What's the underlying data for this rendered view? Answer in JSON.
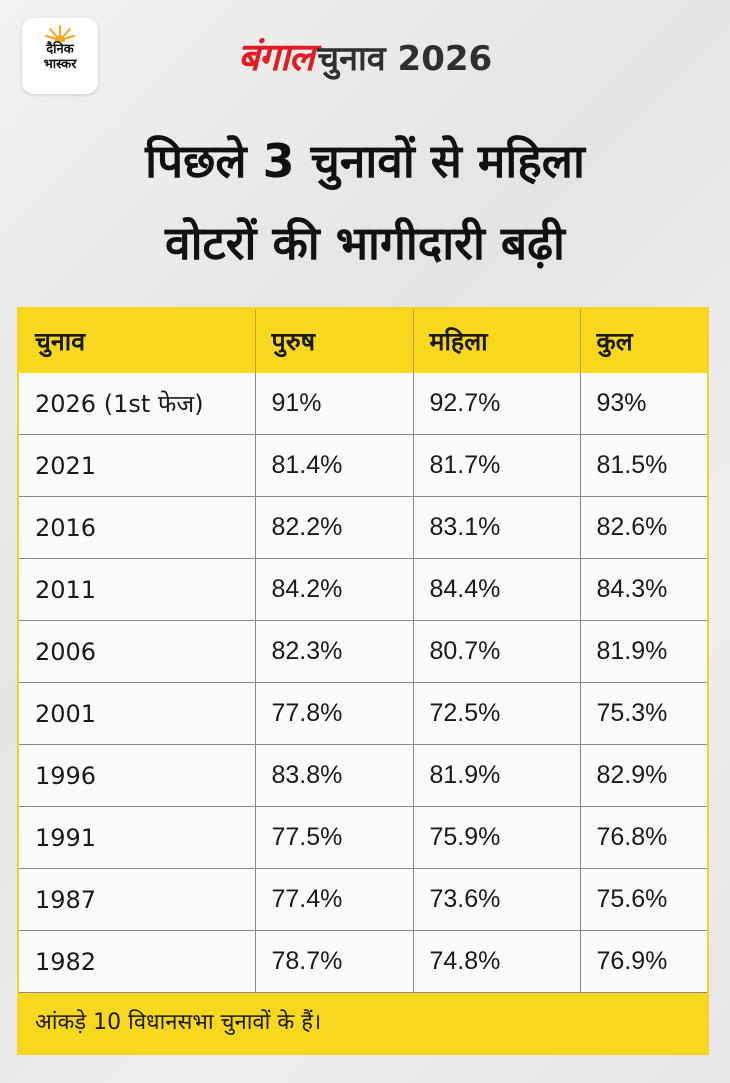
{
  "brand": {
    "logo_line1": "दैनिक",
    "logo_line2": "भास्कर",
    "logo_icon": "sun-icon",
    "title_highlight": "बंगाल",
    "title_rest": "चुनाव 2026"
  },
  "headline": {
    "line1": "पिछले 3 चुनावों से महिला",
    "line2": "वोटरों की भागीदारी बढ़ी"
  },
  "footer_note": "आंकड़े 10 विधानसभा चुनावों के हैं।",
  "colors": {
    "accent_yellow": "#f7d81e",
    "brand_red": "#e21b23",
    "text_dark": "#1a1a1a"
  },
  "chart_data": {
    "type": "table",
    "title": "पिछले 3 चुनावों से महिला वोटरों की भागीदारी बढ़ी",
    "columns": [
      "चुनाव",
      "पुरुष",
      "महिला",
      "कुल"
    ],
    "rows": [
      [
        "2026 (1st फेज)",
        "91%",
        "92.7%",
        "93%"
      ],
      [
        "2021",
        "81.4%",
        "81.7%",
        "81.5%"
      ],
      [
        "2016",
        "82.2%",
        "83.1%",
        "82.6%"
      ],
      [
        "2011",
        "84.2%",
        "84.4%",
        "84.3%"
      ],
      [
        "2006",
        "82.3%",
        "80.7%",
        "81.9%"
      ],
      [
        "2001",
        "77.8%",
        "72.5%",
        "75.3%"
      ],
      [
        "1996",
        "83.8%",
        "81.9%",
        "82.9%"
      ],
      [
        "1991",
        "77.5%",
        "75.9%",
        "76.8%"
      ],
      [
        "1987",
        "77.4%",
        "73.6%",
        "75.6%"
      ],
      [
        "1982",
        "78.7%",
        "74.8%",
        "76.9%"
      ]
    ],
    "note": "आंकड़े 10 विधानसभा चुनावों के हैं।"
  }
}
